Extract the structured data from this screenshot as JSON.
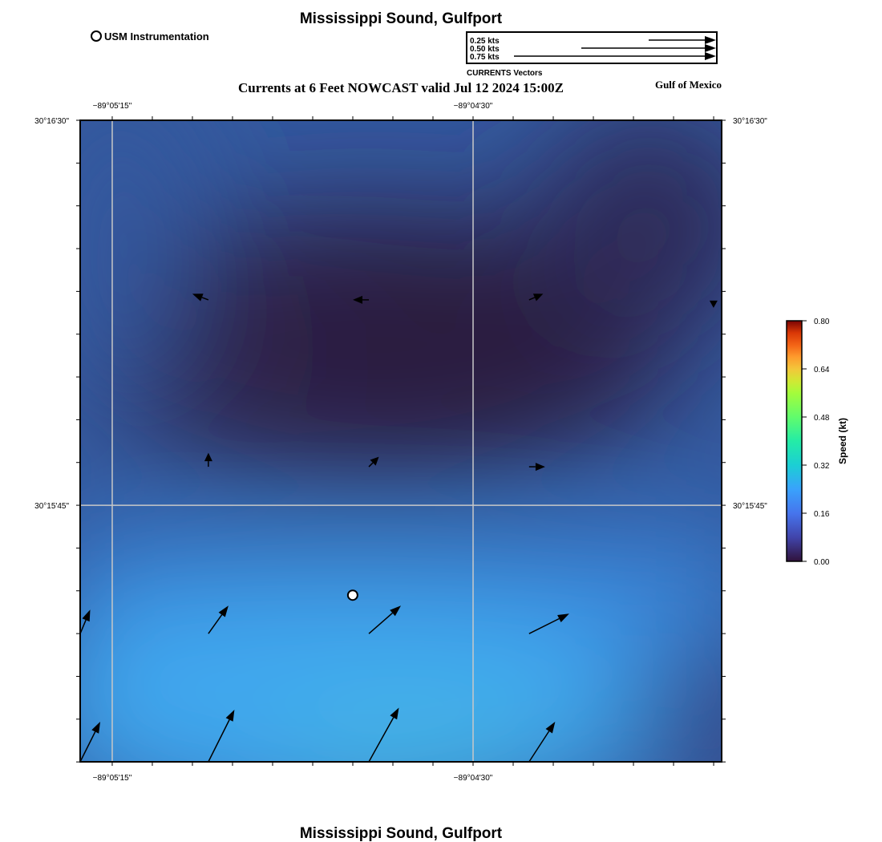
{
  "header": {
    "title": "Mississippi Sound, Gulfport",
    "subtitle": "Currents at 6 Feet NOWCAST valid Jul 12 2024 15:00Z",
    "region_label": "Gulf of Mexico",
    "footer_title": "Mississippi Sound, Gulfport"
  },
  "legend": {
    "station_label": "USM Instrumentation",
    "vector_title": "CURRENTS Vectors",
    "vectors": [
      {
        "label": "0.25 kts",
        "speed": 0.25
      },
      {
        "label": "0.50 kts",
        "speed": 0.5
      },
      {
        "label": "0.75 kts",
        "speed": 0.75
      }
    ]
  },
  "axes": {
    "lon_ticks": [
      {
        "label": "−89°05'15\"",
        "lon": -89.0875
      },
      {
        "label": "−89°04'30\"",
        "lon": -89.075
      }
    ],
    "lat_ticks": [
      {
        "label": "30°16'30\"",
        "lat": 30.275
      },
      {
        "label": "30°15'45\"",
        "lat": 30.2625
      }
    ],
    "lon_range": [
      -89.08861,
      -89.06639
    ],
    "lat_range": [
      30.25417,
      30.275
    ]
  },
  "colorbar": {
    "label": "Speed (kt)",
    "min": 0.0,
    "max": 0.8,
    "ticks": [
      "0.80",
      "0.64",
      "0.48",
      "0.32",
      "0.16",
      "0.00"
    ]
  },
  "station": {
    "name": "USM Instrumentation",
    "lon": -89.07917,
    "lat": 30.25958
  },
  "vectors": [
    {
      "lon": -89.08417,
      "lat": 30.26917,
      "u": -0.08,
      "v": 0.03
    },
    {
      "lon": -89.07861,
      "lat": 30.26917,
      "u": -0.08,
      "v": 0.0
    },
    {
      "lon": -89.07306,
      "lat": 30.26917,
      "u": 0.07,
      "v": 0.03
    },
    {
      "lon": -89.06667,
      "lat": 30.26917,
      "u": 0.0,
      "v": -0.04
    },
    {
      "lon": -89.08417,
      "lat": 30.26375,
      "u": 0.0,
      "v": 0.07
    },
    {
      "lon": -89.07861,
      "lat": 30.26375,
      "u": 0.05,
      "v": 0.05
    },
    {
      "lon": -89.07306,
      "lat": 30.26375,
      "u": 0.08,
      "v": 0.0
    },
    {
      "lon": -89.08861,
      "lat": 30.25833,
      "u": 0.05,
      "v": 0.12
    },
    {
      "lon": -89.08417,
      "lat": 30.25833,
      "u": 0.1,
      "v": 0.14
    },
    {
      "lon": -89.07861,
      "lat": 30.25833,
      "u": 0.16,
      "v": 0.14
    },
    {
      "lon": -89.07306,
      "lat": 30.25833,
      "u": 0.2,
      "v": 0.1
    },
    {
      "lon": -89.08861,
      "lat": 30.25417,
      "u": 0.1,
      "v": 0.2
    },
    {
      "lon": -89.08417,
      "lat": 30.25417,
      "u": 0.13,
      "v": 0.26
    },
    {
      "lon": -89.07861,
      "lat": 30.25417,
      "u": 0.15,
      "v": 0.27
    },
    {
      "lon": -89.07306,
      "lat": 30.25417,
      "u": 0.13,
      "v": 0.2
    }
  ],
  "colors": {
    "field_high": "#41a5ec",
    "field_low": "#2c1a3f",
    "field_mid": "#33589e",
    "grid": "#c8c8c8",
    "arrow": "#000000"
  }
}
